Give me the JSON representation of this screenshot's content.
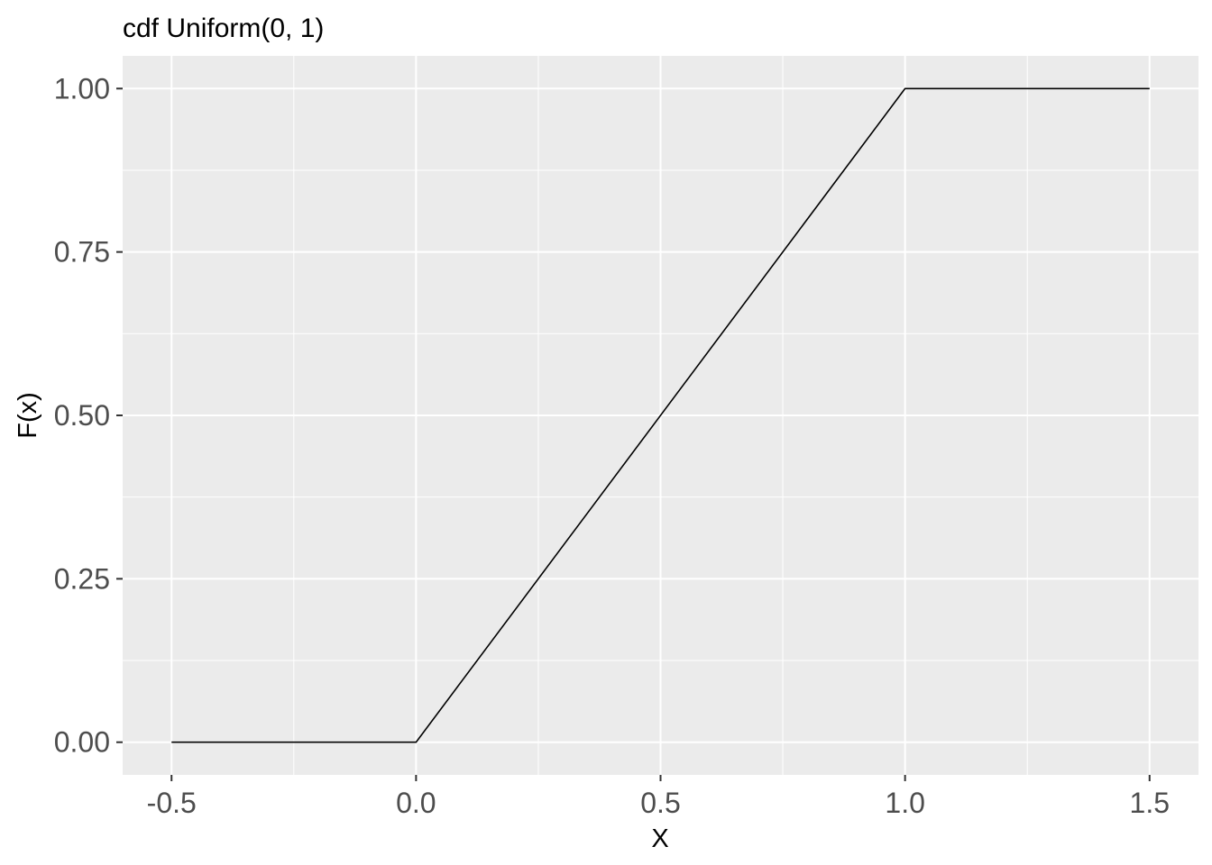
{
  "chart_data": {
    "type": "line",
    "title": "cdf Uniform(0, 1)",
    "xlabel": "X",
    "ylabel": "F(x)",
    "xlim": [
      -0.6,
      1.6
    ],
    "ylim": [
      -0.05,
      1.05
    ],
    "x_ticks": [
      -0.5,
      0.0,
      0.5,
      1.0,
      1.5
    ],
    "x_tick_labels": [
      "-0.5",
      "0.0",
      "0.5",
      "1.0",
      "1.5"
    ],
    "x_minor_ticks": [
      -0.25,
      0.25,
      0.75,
      1.25
    ],
    "y_ticks": [
      0.0,
      0.25,
      0.5,
      0.75,
      1.0
    ],
    "y_tick_labels": [
      "0.00",
      "0.25",
      "0.50",
      "0.75",
      "1.00"
    ],
    "y_minor_ticks": [
      0.125,
      0.375,
      0.625,
      0.875
    ],
    "grid": true,
    "series": [
      {
        "color": "#000000",
        "x": [
          -0.5,
          0.0,
          1.0,
          1.5
        ],
        "y": [
          0.0,
          0.0,
          1.0,
          1.0
        ]
      }
    ],
    "colors": {
      "panel_background": "#ebebeb",
      "grid_line": "#ffffff",
      "tick_mark": "#333333",
      "tick_label": "#4d4d4d"
    }
  }
}
